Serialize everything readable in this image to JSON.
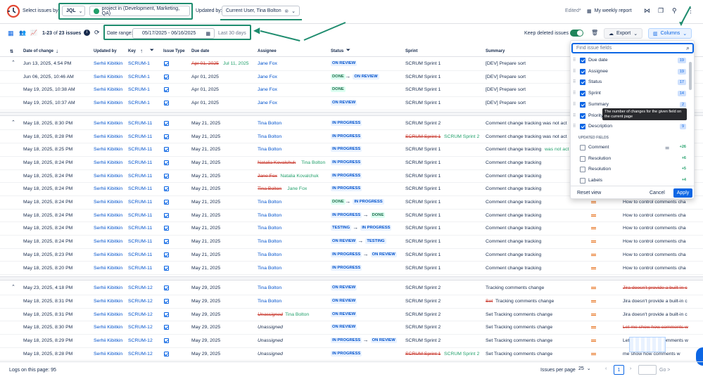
{
  "toolbar": {
    "select_label": "Select issues by",
    "jql_label": "JQL",
    "jql_query": "project in (Development, Marketing, QA)",
    "updated_by_label": "Updated by:",
    "updated_by_value": "Current User, Tina Bolton",
    "edited_label": "Edited*",
    "weekly_report": "My weekly report"
  },
  "subbar": {
    "range_prefix": "1-23",
    "range_of": "of",
    "total": "23 issues",
    "date_range_label": "Date range:",
    "date_range_value": "05/17/2025 - 06/16/2025",
    "last_days": "Last 30 days",
    "keep_deleted": "Keep deleted issues",
    "export": "Export",
    "columns": "Columns"
  },
  "headers": {
    "date_of_change": "Date of change",
    "updated_by": "Updated by",
    "key": "Key",
    "issue_type": "Issue Type",
    "due_date": "Due date",
    "assignee": "Assignee",
    "status": "Status",
    "sprint": "Sprint",
    "summary": "Summary"
  },
  "rows": [
    {
      "date": "Jun 13, 2025, 4:54 PM",
      "by": "Serhii Kibitkin",
      "key": "SCRUM-1",
      "due_old": "Apr 01, 2025",
      "due": "Jul 11, 2025",
      "assignee": "Jane Fox",
      "status": "ON REVIEW",
      "sprint": "SCRUM Sprint 1",
      "summary": "[DEV] Prepare sort",
      "extra": ""
    },
    {
      "date": "Jun 06, 2025, 10:46 AM",
      "by": "Serhii Kibitkin",
      "key": "SCRUM-1",
      "due": "Apr 01, 2025",
      "assignee": "Jane Fox",
      "status_from": "DONE",
      "status": "ON REVIEW",
      "sprint": "SCRUM Sprint 1",
      "summary": "[DEV] Prepare sort",
      "extra": ""
    },
    {
      "date": "May 19, 2025, 10:38 AM",
      "by": "Serhii Kibitkin",
      "key": "SCRUM-1",
      "due": "Apr 01, 2025",
      "assignee": "Jane Fox",
      "status": "DONE",
      "sprint": "SCRUM Sprint 1",
      "summary": "[DEV] Prepare sort",
      "extra": ""
    },
    {
      "date": "May 19, 2025, 10:37 AM",
      "by": "Serhii Kibitkin",
      "key": "SCRUM-1",
      "due": "Apr 01, 2025",
      "assignee": "Jane Fox",
      "status": "ON REVIEW",
      "sprint": "SCRUM Sprint 1",
      "summary": "[DEV] Prepare sort",
      "extra": ""
    },
    {
      "date": "May 18, 2025, 8:30 PM",
      "by": "Serhii Kibitkin",
      "key": "SCRUM-11",
      "due": "May 21, 2025",
      "assignee": "Tina Bolton",
      "status": "IN PROGRESS",
      "sprint": "SCRUM Sprint 2",
      "summary": "Comment change tracking was not act",
      "extra": ""
    },
    {
      "date": "May 18, 2025, 8:28 PM",
      "by": "Serhii Kibitkin",
      "key": "SCRUM-11",
      "due": "May 21, 2025",
      "assignee": "Tina Bolton",
      "status": "IN PROGRESS",
      "sprint_old": "SCRUM Sprint 1",
      "sprint": "SCRUM Sprint 2",
      "summary": "Comment change tracking was not act",
      "extra": ""
    },
    {
      "date": "May 18, 2025, 8:25 PM",
      "by": "Serhii Kibitkin",
      "key": "SCRUM-11",
      "due": "May 21, 2025",
      "assignee": "Tina Bolton",
      "status": "IN PROGRESS",
      "sprint": "SCRUM Sprint 1",
      "summary": "Comment change tracking",
      "summary_add": "was not act",
      "extra": ""
    },
    {
      "date": "May 18, 2025, 8:24 PM",
      "by": "Serhii Kibitkin",
      "key": "SCRUM-11",
      "due": "May 21, 2025",
      "assignee_old": "Natalia Kovalchuk",
      "assignee": "Tina Bolton",
      "status": "IN PROGRESS",
      "sprint": "SCRUM Sprint 1",
      "summary": "Comment change tracking",
      "extra": ""
    },
    {
      "date": "May 18, 2025, 8:24 PM",
      "by": "Serhii Kibitkin",
      "key": "SCRUM-11",
      "due": "May 21, 2025",
      "assignee_old": "Jane Fox",
      "assignee": "Natalia Kovalchuk",
      "status": "IN PROGRESS",
      "sprint": "SCRUM Sprint 1",
      "summary": "Comment change tracking",
      "extra": ""
    },
    {
      "date": "May 18, 2025, 8:24 PM",
      "by": "Serhii Kibitkin",
      "key": "SCRUM-11",
      "due": "May 21, 2025",
      "assignee_old": "Tina Bolton",
      "assignee": "Jane Fox",
      "status": "IN PROGRESS",
      "sprint": "SCRUM Sprint 1",
      "summary": "Comment change tracking",
      "extra": ""
    },
    {
      "date": "May 18, 2025, 8:24 PM",
      "by": "Serhii Kibitkin",
      "key": "SCRUM-11",
      "due": "May 21, 2025",
      "assignee": "Tina Bolton",
      "status_from": "DONE",
      "status": "IN PROGRESS",
      "sprint": "SCRUM Sprint 1",
      "summary": "Comment change tracking",
      "extra": "How to control comments cha"
    },
    {
      "date": "May 18, 2025, 8:24 PM",
      "by": "Serhii Kibitkin",
      "key": "SCRUM-11",
      "due": "May 21, 2025",
      "assignee": "Tina Bolton",
      "status_from": "IN PROGRESS",
      "status": "DONE",
      "sprint": "SCRUM Sprint 1",
      "summary": "Comment change tracking",
      "extra": "How to control comments cha"
    },
    {
      "date": "May 18, 2025, 8:24 PM",
      "by": "Serhii Kibitkin",
      "key": "SCRUM-11",
      "due": "May 21, 2025",
      "assignee": "Tina Bolton",
      "status_from": "TESTING",
      "status": "IN PROGRESS",
      "sprint": "SCRUM Sprint 1",
      "summary": "Comment change tracking",
      "extra": "How to control comments cha"
    },
    {
      "date": "May 18, 2025, 8:24 PM",
      "by": "Serhii Kibitkin",
      "key": "SCRUM-11",
      "due": "May 21, 2025",
      "assignee": "Tina Bolton",
      "status_from": "ON REVIEW",
      "status": "TESTING",
      "sprint": "SCRUM Sprint 1",
      "summary": "Comment change tracking",
      "extra": "How to control comments cha"
    },
    {
      "date": "May 18, 2025, 8:23 PM",
      "by": "Serhii Kibitkin",
      "key": "SCRUM-11",
      "due": "May 21, 2025",
      "assignee": "Tina Bolton",
      "status_from": "IN PROGRESS",
      "status": "ON REVIEW",
      "sprint": "SCRUM Sprint 1",
      "summary": "Comment change tracking",
      "extra": "How to control comments cha"
    },
    {
      "date": "May 18, 2025, 8:20 PM",
      "by": "Serhii Kibitkin",
      "key": "SCRUM-11",
      "due": "May 21, 2025",
      "assignee": "Tina Bolton",
      "status": "IN PROGRESS",
      "sprint": "SCRUM Sprint 1",
      "summary": "Comment change tracking",
      "extra": "How to control comments cha"
    },
    {
      "date": "May 23, 2025, 4:18 PM",
      "by": "Serhii Kibitkin",
      "key": "SCRUM-12",
      "due": "May 29, 2025",
      "assignee": "Tina Bolton",
      "status": "ON REVIEW",
      "sprint": "SCRUM Sprint 2",
      "summary": "Tracking comments change",
      "extra_old": "Jira doesn't provide a built-in c"
    },
    {
      "date": "May 18, 2025, 8:31 PM",
      "by": "Serhii Kibitkin",
      "key": "SCRUM-12",
      "due": "May 29, 2025",
      "assignee": "Tina Bolton",
      "status": "ON REVIEW",
      "sprint": "SCRUM Sprint 2",
      "summary_old": "Set",
      "summary": "Tracking comments change",
      "extra": "Jira doesn't provide a built-in c"
    },
    {
      "date": "May 18, 2025, 8:31 PM",
      "by": "Serhii Kibitkin",
      "key": "SCRUM-12",
      "due": "May 29, 2025",
      "assignee_old": "Unassigned",
      "assignee": "Tina Bolton",
      "status": "ON REVIEW",
      "sprint": "SCRUM Sprint 2",
      "summary": "Set Tracking comments change",
      "extra": "Jira doesn't provide a built-in c"
    },
    {
      "date": "May 18, 2025, 8:30 PM",
      "by": "Serhii Kibitkin",
      "key": "SCRUM-12",
      "due": "May 29, 2025",
      "assignee": "Unassigned",
      "status": "ON REVIEW",
      "sprint": "SCRUM Sprint 2",
      "summary": "Set Tracking comments change",
      "extra_old": "Let me show how comments w"
    },
    {
      "date": "May 18, 2025, 8:29 PM",
      "by": "Serhii Kibitkin",
      "key": "SCRUM-12",
      "due": "May 29, 2025",
      "assignee": "Unassigned",
      "status_from": "IN PROGRESS",
      "status": "ON REVIEW",
      "sprint": "SCRUM Sprint 2",
      "summary": "Set Tracking comments change",
      "extra": "Let me show how comments w"
    },
    {
      "date": "May 18, 2025, 8:28 PM",
      "by": "Serhii Kibitkin",
      "key": "SCRUM-12",
      "due": "May 29, 2025",
      "assignee": "Unassigned",
      "status": "IN PROGRESS",
      "sprint_old": "SCRUM Sprint 1",
      "sprint": "SCRUM Sprint 2",
      "summary": "Set Tracking comments change",
      "extra": "me show how comments w"
    }
  ],
  "panel": {
    "search_placeholder": "Find issue fields",
    "fields": [
      {
        "label": "Due date",
        "count": "19"
      },
      {
        "label": "Assignee",
        "count": "19"
      },
      {
        "label": "Status",
        "count": "17"
      },
      {
        "label": "Sprint",
        "count": "14"
      },
      {
        "label": "Summary",
        "count": "2"
      },
      {
        "label": "Priority",
        "count": ""
      },
      {
        "label": "Description",
        "count": "9"
      }
    ],
    "tooltip": "The number of changes for the given field on the current page",
    "updated_fields_label": "UPDATED FIELDS",
    "updated": [
      {
        "label": "Comment",
        "count": "+26"
      },
      {
        "label": "Resolution",
        "count": "+6"
      },
      {
        "label": "Resolution",
        "count": "+5"
      },
      {
        "label": "Labels",
        "count": "+4"
      }
    ],
    "reset": "Reset view",
    "cancel": "Cancel",
    "apply": "Apply"
  },
  "footer": {
    "logs": "Logs on this page: 95",
    "per_page_label": "Issues per page",
    "per_page": "25",
    "page": "1",
    "go": "Go"
  }
}
